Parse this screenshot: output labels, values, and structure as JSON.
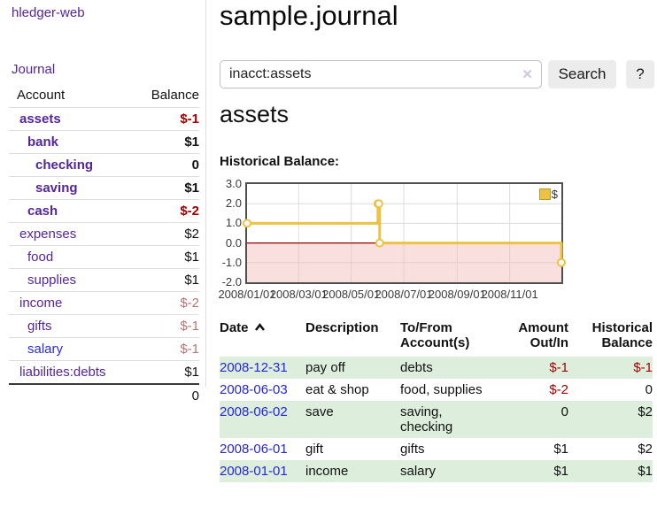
{
  "colors": {
    "link_purple": "#54259c",
    "link_blue": "#2b2bdd",
    "negative_red": "#a40000",
    "negative_faded": "#bb7272",
    "row_green": "#ddeedd",
    "series_gold": "#edc240",
    "negative_region_pink": "#f5b8b8",
    "zero_line_dark_red": "#8b0000",
    "grid_gray": "#dcdcdc",
    "chart_border": "#4f4f4f"
  },
  "sidebar": {
    "app_title": "hledger-web",
    "journal_label": "Journal",
    "accounts_table": {
      "headers": {
        "account": "Account",
        "balance": "Balance"
      },
      "rows": [
        {
          "label": "assets",
          "depth": 0,
          "bold": true,
          "balance": "$-1",
          "negative": true
        },
        {
          "label": "bank",
          "depth": 1,
          "bold": true,
          "balance": "$1",
          "negative": false
        },
        {
          "label": "checking",
          "depth": 2,
          "bold": true,
          "balance": "0",
          "negative": false
        },
        {
          "label": "saving",
          "depth": 2,
          "bold": true,
          "balance": "$1",
          "negative": false
        },
        {
          "label": "cash",
          "depth": 1,
          "bold": true,
          "balance": "$-2",
          "negative": true
        },
        {
          "label": "expenses",
          "depth": 0,
          "bold": false,
          "balance": "$2",
          "negative": false
        },
        {
          "label": "food",
          "depth": 1,
          "bold": false,
          "balance": "$1",
          "negative": false
        },
        {
          "label": "supplies",
          "depth": 1,
          "bold": false,
          "balance": "$1",
          "negative": false
        },
        {
          "label": "income",
          "depth": 0,
          "bold": false,
          "balance": "$-2",
          "negative": true
        },
        {
          "label": "gifts",
          "depth": 1,
          "bold": false,
          "balance": "$-1",
          "negative": true
        },
        {
          "label": "salary",
          "depth": 1,
          "bold": false,
          "balance": "$-1",
          "negative": true,
          "link_color": "blue"
        },
        {
          "label": "liabilities:debts",
          "depth": 0,
          "bold": false,
          "balance": "$1",
          "negative": false
        }
      ],
      "total": "0"
    }
  },
  "main": {
    "title": "sample.journal",
    "search": {
      "value": "inacct:assets",
      "clear_icon": "✕",
      "button_label": "Search",
      "help_label": "?"
    },
    "account_heading": "assets",
    "chart_label": "Historical Balance:"
  },
  "chart_data": {
    "type": "line",
    "title": "Historical Balance:",
    "step": true,
    "series": [
      {
        "name": "$",
        "points": [
          [
            "2008-01-01",
            1
          ],
          [
            "2008-06-01",
            2
          ],
          [
            "2008-06-02",
            2
          ],
          [
            "2008-06-03",
            0
          ],
          [
            "2008-12-31",
            -1
          ]
        ]
      }
    ],
    "x_range": [
      "2008-01-01",
      "2008-12-31"
    ],
    "x_ticks": [
      "2008/01/01",
      "2008/03/01",
      "2008/05/01",
      "2008/07/01",
      "2008/09/01",
      "2008/11/01"
    ],
    "y_ticks": [
      3.0,
      2.0,
      1.0,
      0.0,
      -1.0,
      -2.0
    ],
    "ylim": [
      -2,
      3
    ],
    "grid": true,
    "legend_position": "top-right",
    "legend_label": "$",
    "negative_region_shaded": true
  },
  "register_table": {
    "headers": {
      "date": "Date",
      "description": "Description",
      "accounts": "To/From Account(s)",
      "amount": "Amount Out/In",
      "balance": "Historical Balance"
    },
    "rows": [
      {
        "date": "2008-12-31",
        "description": "pay off",
        "accounts": "debts",
        "amount": "$-1",
        "amount_negative": true,
        "balance": "$-1",
        "balance_negative": true,
        "shaded": true
      },
      {
        "date": "2008-06-03",
        "description": "eat & shop",
        "accounts": "food, supplies",
        "amount": "$-2",
        "amount_negative": true,
        "balance": "0",
        "balance_negative": false,
        "shaded": false
      },
      {
        "date": "2008-06-02",
        "description": "save",
        "accounts": "saving, checking",
        "amount": "0",
        "amount_negative": false,
        "balance": "$2",
        "balance_negative": false,
        "shaded": true
      },
      {
        "date": "2008-06-01",
        "description": "gift",
        "accounts": "gifts",
        "amount": "$1",
        "amount_negative": false,
        "balance": "$2",
        "balance_negative": false,
        "shaded": false
      },
      {
        "date": "2008-01-01",
        "description": "income",
        "accounts": "salary",
        "amount": "$1",
        "amount_negative": false,
        "balance": "$1",
        "balance_negative": false,
        "shaded": true
      }
    ]
  }
}
